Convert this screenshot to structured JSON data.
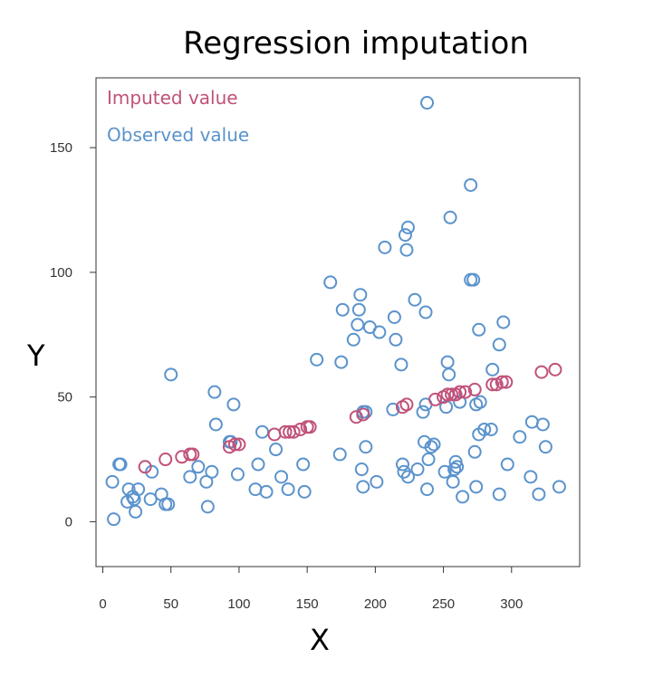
{
  "chart_data": {
    "type": "scatter",
    "title": "Regression imputation",
    "xlabel": "X",
    "ylabel": "Y",
    "xlim": [
      -5,
      350
    ],
    "ylim": [
      -18,
      178
    ],
    "x_ticks": [
      0,
      50,
      100,
      150,
      200,
      250,
      300
    ],
    "y_ticks": [
      0,
      50,
      100,
      150
    ],
    "legend_placement": "top-left",
    "series": [
      {
        "name": "Imputed value",
        "color": "#c0527a",
        "points": [
          [
            31,
            22
          ],
          [
            46,
            25
          ],
          [
            58,
            26
          ],
          [
            64,
            27
          ],
          [
            66,
            27
          ],
          [
            93,
            30
          ],
          [
            97,
            31
          ],
          [
            100,
            31
          ],
          [
            126,
            35
          ],
          [
            134,
            36
          ],
          [
            137,
            36
          ],
          [
            140,
            36
          ],
          [
            145,
            37
          ],
          [
            150,
            38
          ],
          [
            152,
            38
          ],
          [
            186,
            42
          ],
          [
            191,
            43
          ],
          [
            220,
            46
          ],
          [
            223,
            47
          ],
          [
            244,
            49
          ],
          [
            250,
            50
          ],
          [
            253,
            51
          ],
          [
            256,
            51
          ],
          [
            259,
            51
          ],
          [
            262,
            52
          ],
          [
            266,
            52
          ],
          [
            273,
            53
          ],
          [
            286,
            55
          ],
          [
            289,
            55
          ],
          [
            293,
            56
          ],
          [
            296,
            56
          ],
          [
            322,
            60
          ],
          [
            332,
            61
          ]
        ]
      },
      {
        "name": "Observed value",
        "color": "#5b93cc",
        "points": [
          [
            7,
            16
          ],
          [
            8,
            1
          ],
          [
            12,
            23
          ],
          [
            13,
            23
          ],
          [
            18,
            8
          ],
          [
            19,
            13
          ],
          [
            22,
            10
          ],
          [
            23,
            9
          ],
          [
            24,
            4
          ],
          [
            26,
            13
          ],
          [
            35,
            9
          ],
          [
            36,
            20
          ],
          [
            43,
            11
          ],
          [
            46,
            7
          ],
          [
            48,
            7
          ],
          [
            50,
            59
          ],
          [
            64,
            18
          ],
          [
            70,
            22
          ],
          [
            76,
            16
          ],
          [
            77,
            6
          ],
          [
            80,
            20
          ],
          [
            82,
            52
          ],
          [
            83,
            39
          ],
          [
            93,
            32
          ],
          [
            94,
            32
          ],
          [
            96,
            47
          ],
          [
            99,
            19
          ],
          [
            112,
            13
          ],
          [
            114,
            23
          ],
          [
            117,
            36
          ],
          [
            120,
            12
          ],
          [
            127,
            29
          ],
          [
            131,
            18
          ],
          [
            136,
            13
          ],
          [
            147,
            23
          ],
          [
            148,
            12
          ],
          [
            157,
            65
          ],
          [
            167,
            96
          ],
          [
            174,
            27
          ],
          [
            175,
            64
          ],
          [
            176,
            85
          ],
          [
            184,
            73
          ],
          [
            187,
            79
          ],
          [
            188,
            85
          ],
          [
            189,
            91
          ],
          [
            190,
            21
          ],
          [
            191,
            14
          ],
          [
            191,
            44
          ],
          [
            193,
            44
          ],
          [
            193,
            30
          ],
          [
            196,
            78
          ],
          [
            201,
            16
          ],
          [
            203,
            76
          ],
          [
            207,
            110
          ],
          [
            213,
            45
          ],
          [
            214,
            82
          ],
          [
            215,
            73
          ],
          [
            219,
            63
          ],
          [
            220,
            23
          ],
          [
            221,
            20
          ],
          [
            222,
            115
          ],
          [
            223,
            109
          ],
          [
            224,
            18
          ],
          [
            224,
            118
          ],
          [
            229,
            89
          ],
          [
            231,
            21
          ],
          [
            235,
            44
          ],
          [
            236,
            32
          ],
          [
            237,
            47
          ],
          [
            237,
            84
          ],
          [
            238,
            13
          ],
          [
            238,
            168
          ],
          [
            239,
            25
          ],
          [
            241,
            30
          ],
          [
            243,
            31
          ],
          [
            251,
            20
          ],
          [
            252,
            46
          ],
          [
            253,
            64
          ],
          [
            254,
            59
          ],
          [
            255,
            122
          ],
          [
            257,
            16
          ],
          [
            258,
            21
          ],
          [
            259,
            24
          ],
          [
            260,
            22
          ],
          [
            262,
            48
          ],
          [
            264,
            10
          ],
          [
            270,
            97
          ],
          [
            270,
            135
          ],
          [
            272,
            97
          ],
          [
            273,
            28
          ],
          [
            274,
            14
          ],
          [
            276,
            77
          ],
          [
            277,
            48
          ],
          [
            280,
            37
          ],
          [
            285,
            37
          ],
          [
            286,
            61
          ],
          [
            291,
            11
          ],
          [
            291,
            71
          ],
          [
            294,
            80
          ],
          [
            297,
            23
          ],
          [
            306,
            34
          ],
          [
            314,
            18
          ],
          [
            315,
            40
          ],
          [
            320,
            11
          ],
          [
            323,
            39
          ],
          [
            325,
            30
          ],
          [
            335,
            14
          ],
          [
            276,
            35
          ],
          [
            274,
            47
          ]
        ]
      }
    ]
  }
}
